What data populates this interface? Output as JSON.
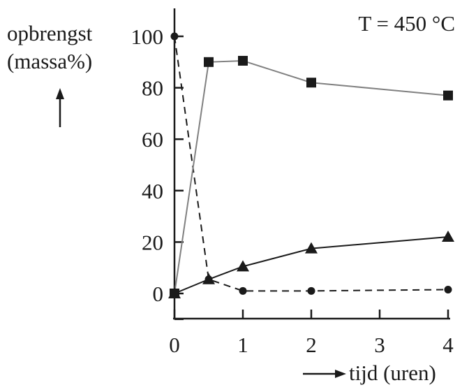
{
  "chart_data": {
    "type": "line",
    "annotation": "T = 450 °C",
    "ylabel_line1": "opbrengst",
    "ylabel_line2": "(massa%)",
    "xlabel": "tijd (uren)",
    "xlim": [
      0,
      4
    ],
    "ylim": [
      -10,
      110
    ],
    "xticks": [
      0,
      1,
      2,
      3,
      4
    ],
    "yticks": [
      0,
      20,
      40,
      60,
      80,
      100
    ],
    "grid": false,
    "series": [
      {
        "marker": "circle",
        "style": "dashed",
        "color": "#1a1a1a",
        "x": [
          0,
          0.5,
          1,
          2,
          4
        ],
        "y": [
          100,
          5.5,
          1,
          1,
          1.5
        ]
      },
      {
        "marker": "square",
        "style": "solid-gray",
        "color": "#808080",
        "x": [
          0,
          0.5,
          1,
          2,
          4
        ],
        "y": [
          0,
          90,
          90.5,
          82,
          77
        ]
      },
      {
        "marker": "triangle",
        "style": "solid",
        "color": "#1a1a1a",
        "x": [
          0,
          0.5,
          1,
          2,
          4
        ],
        "y": [
          0,
          5.5,
          10.5,
          17.5,
          22
        ]
      }
    ]
  }
}
